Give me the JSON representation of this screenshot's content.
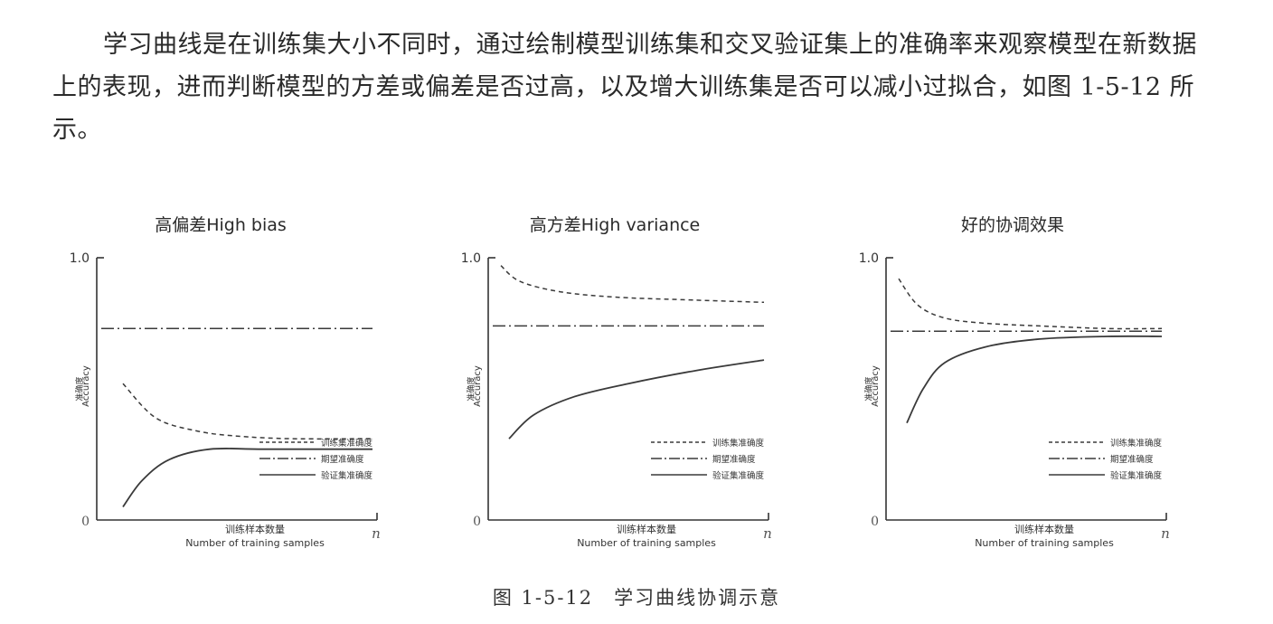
{
  "paragraph": "学习曲线是在训练集大小不同时，通过绘制模型训练集和交叉验证集上的准确率来观察模型在新数据上的表现，进而判断模型的方差或偏差是否过高，以及增大训练集是否可以减小过拟合，如图 1-5-12 所示。",
  "caption": "图 1-5-12　学习曲线协调示意",
  "axes": {
    "y_top_tick": "1.0",
    "origin": "0",
    "x_end": "n",
    "ylabel_cn": "准确度",
    "ylabel_en": "Accuracy",
    "xlabel_cn": "训练样本数量",
    "xlabel_en": "Number of training samples"
  },
  "legend": {
    "train": "训练集准确度",
    "desired": "期望准确度",
    "validation": "验证集准确度"
  },
  "chart_data": [
    {
      "type": "line",
      "title": "高偏差High bias",
      "ylim": [
        0,
        1.0
      ],
      "series": [
        {
          "key": "train",
          "style": "dashed",
          "x": [
            0.08,
            0.2,
            0.35,
            0.5,
            0.7,
            1.0
          ],
          "y": [
            0.52,
            0.39,
            0.34,
            0.32,
            0.31,
            0.31
          ]
        },
        {
          "key": "desired",
          "style": "dash-dot",
          "x": [
            0.0,
            1.0
          ],
          "y": [
            0.73,
            0.73
          ]
        },
        {
          "key": "validation",
          "style": "solid",
          "x": [
            0.08,
            0.15,
            0.25,
            0.4,
            0.6,
            1.0
          ],
          "y": [
            0.05,
            0.15,
            0.23,
            0.27,
            0.27,
            0.27
          ]
        }
      ]
    },
    {
      "type": "line",
      "title": "高方差High variance",
      "ylim": [
        0,
        1.0
      ],
      "series": [
        {
          "key": "train",
          "style": "dashed",
          "x": [
            0.03,
            0.1,
            0.25,
            0.45,
            0.7,
            1.0
          ],
          "y": [
            0.97,
            0.91,
            0.87,
            0.85,
            0.84,
            0.83
          ]
        },
        {
          "key": "desired",
          "style": "dash-dot",
          "x": [
            0.0,
            1.0
          ],
          "y": [
            0.74,
            0.74
          ]
        },
        {
          "key": "validation",
          "style": "solid",
          "x": [
            0.06,
            0.15,
            0.3,
            0.5,
            0.75,
            1.0
          ],
          "y": [
            0.31,
            0.4,
            0.47,
            0.52,
            0.57,
            0.61
          ]
        }
      ]
    },
    {
      "type": "line",
      "title": "好的协调效果",
      "ylim": [
        0,
        1.0
      ],
      "series": [
        {
          "key": "train",
          "style": "dashed",
          "x": [
            0.03,
            0.1,
            0.2,
            0.35,
            0.55,
            0.8,
            1.0
          ],
          "y": [
            0.92,
            0.82,
            0.77,
            0.75,
            0.74,
            0.73,
            0.73
          ]
        },
        {
          "key": "desired",
          "style": "dash-dot",
          "x": [
            0.0,
            1.0
          ],
          "y": [
            0.72,
            0.72
          ]
        },
        {
          "key": "validation",
          "style": "solid",
          "x": [
            0.06,
            0.12,
            0.2,
            0.35,
            0.55,
            0.8,
            1.0
          ],
          "y": [
            0.37,
            0.5,
            0.6,
            0.66,
            0.69,
            0.7,
            0.7
          ]
        }
      ]
    }
  ]
}
